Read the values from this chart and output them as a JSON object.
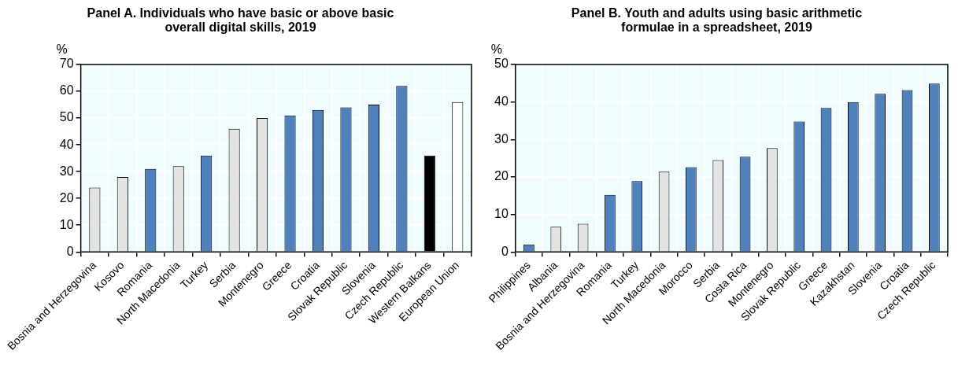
{
  "chart_data": [
    {
      "type": "bar",
      "title": "Panel A. Individuals who have basic or above basic overall digital skills, 2019",
      "ylabel": "%",
      "categories": [
        "Bosnia and Herzegovina",
        "Kosovo",
        "Romania",
        "North Macedonia",
        "Turkey",
        "Serbia",
        "Montenegro",
        "Greece",
        "Croatia",
        "Slovak Republic",
        "Slovenia",
        "Czech Republic",
        "Western Balkans",
        "European Union"
      ],
      "values": [
        24,
        28,
        31,
        32,
        36,
        46,
        50,
        51,
        53,
        54,
        55,
        62,
        36,
        56
      ],
      "colors": [
        "#e3e3e3",
        "#e3e3e3",
        "#4f81bd",
        "#e3e3e3",
        "#4f81bd",
        "#e3e3e3",
        "#e3e3e3",
        "#4f81bd",
        "#4f81bd",
        "#4f81bd",
        "#4f81bd",
        "#4f81bd",
        "#000000",
        "#ffffff"
      ],
      "ylim": [
        0,
        70
      ],
      "yticks": [
        0,
        10,
        20,
        30,
        40,
        50,
        60,
        70
      ],
      "grid": true
    },
    {
      "type": "bar",
      "title": "Panel B. Youth and adults using basic arithmetic formulae in a spreadsheet, 2019",
      "ylabel": "%",
      "categories": [
        "Philippines",
        "Albania",
        "Bosnia and Herzegovina",
        "Romania",
        "Turkey",
        "North Macedonia",
        "Morocco",
        "Serbia",
        "Costa Rica",
        "Montenegro",
        "Slovak Republic",
        "Greece",
        "Kazakhstan",
        "Slovenia",
        "Croatia",
        "Czech Republic"
      ],
      "values": [
        2,
        6.7,
        7.5,
        15.2,
        18.9,
        21.4,
        22.6,
        24.5,
        25.4,
        27.7,
        34.8,
        38.4,
        40,
        42.2,
        43.2,
        44.9
      ],
      "colors": [
        "#4f81bd",
        "#e3e3e3",
        "#e3e3e3",
        "#4f81bd",
        "#4f81bd",
        "#e3e3e3",
        "#4f81bd",
        "#e3e3e3",
        "#4f81bd",
        "#e3e3e3",
        "#4f81bd",
        "#4f81bd",
        "#4f81bd",
        "#4f81bd",
        "#4f81bd",
        "#4f81bd"
      ],
      "ylim": [
        0,
        50
      ],
      "yticks": [
        0,
        10,
        20,
        30,
        40,
        50
      ],
      "grid": true
    }
  ]
}
